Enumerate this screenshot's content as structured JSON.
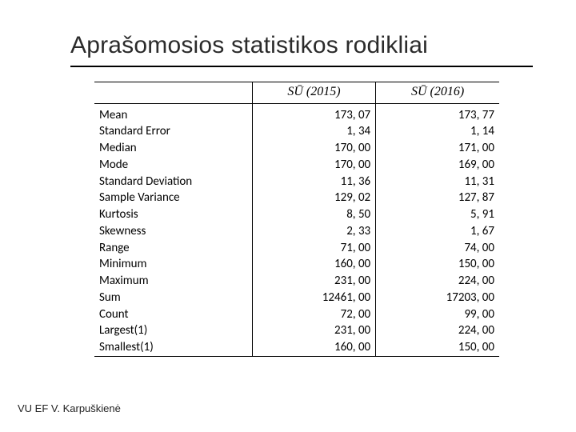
{
  "title": "Aprašomosios statistikos rodikliai",
  "footer": "VU EF V. Karpuškienė",
  "table": {
    "columns": [
      "",
      "SŪ (2015)",
      "SŪ (2016)"
    ],
    "rows": [
      {
        "label": "Mean",
        "c1": "173, 07",
        "c2": "173, 77"
      },
      {
        "label": "Standard Error",
        "c1": "1, 34",
        "c2": "1, 14"
      },
      {
        "label": "Median",
        "c1": "170, 00",
        "c2": "171, 00"
      },
      {
        "label": "Mode",
        "c1": "170, 00",
        "c2": "169, 00"
      },
      {
        "label": "Standard Deviation",
        "c1": "11, 36",
        "c2": "11, 31"
      },
      {
        "label": "Sample Variance",
        "c1": "129, 02",
        "c2": "127, 87"
      },
      {
        "label": "Kurtosis",
        "c1": "8, 50",
        "c2": "5, 91"
      },
      {
        "label": "Skewness",
        "c1": "2, 33",
        "c2": "1, 67"
      },
      {
        "label": "Range",
        "c1": "71, 00",
        "c2": "74, 00"
      },
      {
        "label": "Minimum",
        "c1": "160, 00",
        "c2": "150, 00"
      },
      {
        "label": "Maximum",
        "c1": "231, 00",
        "c2": "224, 00"
      },
      {
        "label": "Sum",
        "c1": "12461, 00",
        "c2": "17203, 00"
      },
      {
        "label": "Count",
        "c1": "72, 00",
        "c2": "99, 00"
      },
      {
        "label": "Largest(1)",
        "c1": "231, 00",
        "c2": "224, 00"
      },
      {
        "label": "Smallest(1)",
        "c1": "160, 00",
        "c2": "150, 00"
      }
    ]
  },
  "style": {
    "page_bg": "#ffffff",
    "title_color": "#2b2b2b",
    "title_fontsize": 30,
    "rule_color": "#000000",
    "cell_font": "Calibri",
    "cell_fontsize": 15,
    "header_font": "Times New Roman",
    "header_fontstyle": "italic",
    "header_fontsize": 16,
    "footer_fontsize": 13,
    "footer_color": "#222222"
  }
}
